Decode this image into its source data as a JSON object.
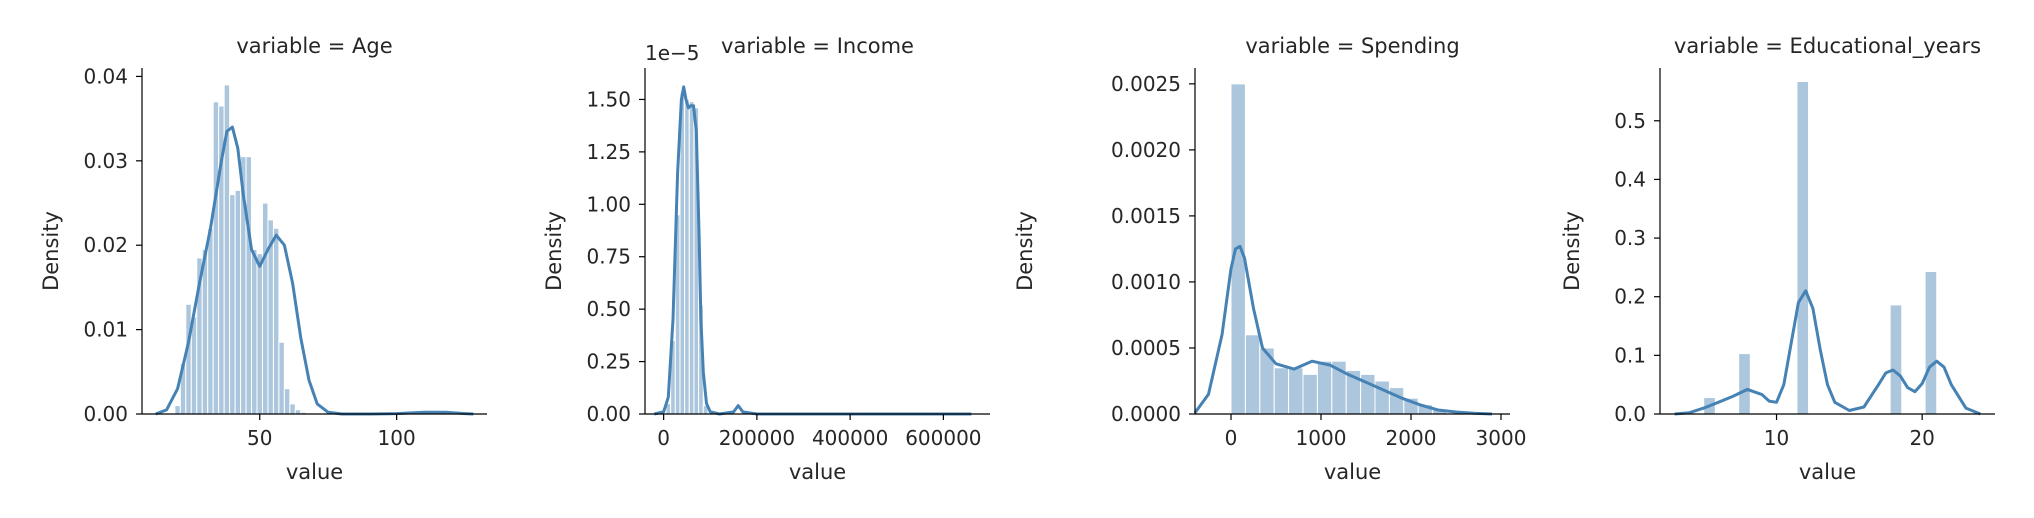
{
  "figure": {
    "background": "#ffffff"
  },
  "style": {
    "hist_color": "#4682b4",
    "hist_opacity": 0.45,
    "kde_color": "#4682b4",
    "text_color": "#262626"
  },
  "chart_data": [
    {
      "type": "histogram+kde",
      "title": "variable = Age",
      "xlabel": "value",
      "ylabel": "Density",
      "xlim": [
        7,
        133
      ],
      "ylim": [
        0,
        0.041
      ],
      "xticks": [
        50,
        100
      ],
      "xtick_labels": [
        "50",
        "100"
      ],
      "yticks": [
        0,
        0.01,
        0.02,
        0.03,
        0.04
      ],
      "ytick_labels": [
        "0.00",
        "0.01",
        "0.02",
        "0.03",
        "0.04"
      ],
      "bins": {
        "edges": [
          19,
          21,
          23,
          25,
          27,
          29,
          31,
          33,
          35,
          37,
          39,
          41,
          43,
          45,
          47,
          49,
          51,
          53,
          55,
          57,
          59,
          61,
          63,
          65,
          67,
          69,
          71,
          73
        ],
        "heights": [
          0.001,
          0.006,
          0.013,
          0.0115,
          0.0185,
          0.0195,
          0.022,
          0.037,
          0.0365,
          0.039,
          0.026,
          0.0265,
          0.0305,
          0.0305,
          0.0195,
          0.019,
          0.025,
          0.023,
          0.022,
          0.0085,
          0.003,
          0.0012,
          0.0005,
          0.0002,
          0.0001,
          0.0001,
          5e-05
        ]
      },
      "kde": {
        "x": [
          12,
          16,
          20,
          24,
          28,
          32,
          36,
          38,
          40,
          42,
          44,
          47,
          50,
          53,
          56,
          59,
          62,
          65,
          68,
          71,
          75,
          80,
          90,
          100,
          110,
          118,
          125,
          128
        ],
        "y": [
          0,
          0.0005,
          0.003,
          0.0085,
          0.0155,
          0.022,
          0.03,
          0.0335,
          0.034,
          0.0315,
          0.026,
          0.0195,
          0.0175,
          0.0195,
          0.0212,
          0.02,
          0.0155,
          0.009,
          0.004,
          0.0012,
          0.0002,
          0,
          0,
          5e-05,
          0.0002,
          0.0002,
          5e-05,
          0
        ]
      }
    },
    {
      "type": "histogram+kde",
      "title": "variable = Income",
      "xlabel": "value",
      "ylabel": "Density",
      "offset_text": "1e−5",
      "xlim": [
        -40000,
        700000
      ],
      "ylim": [
        0,
        1.65
      ],
      "xticks": [
        0,
        200000,
        400000,
        600000
      ],
      "xtick_labels": [
        "0",
        "200000",
        "400000",
        "600000"
      ],
      "yticks": [
        0,
        0.25,
        0.5,
        0.75,
        1.0,
        1.25,
        1.5
      ],
      "ytick_labels": [
        "0.00",
        "0.25",
        "0.50",
        "0.75",
        "1.00",
        "1.25",
        "1.50"
      ],
      "bins": {
        "edges": [
          5000,
          15000,
          25000,
          35000,
          45000,
          55000,
          65000,
          75000,
          85000,
          95000
        ],
        "heights": [
          0.05,
          0.35,
          0.95,
          1.53,
          1.5,
          1.49,
          1.46,
          0.52,
          0.04
        ]
      },
      "kde": {
        "x": [
          -20000,
          0,
          10000,
          20000,
          30000,
          38000,
          43000,
          48000,
          53000,
          58000,
          64000,
          70000,
          76000,
          80000,
          85000,
          92000,
          100000,
          120000,
          150000,
          160000,
          170000,
          200000,
          300000,
          500000,
          660000
        ],
        "y": [
          0,
          0.01,
          0.08,
          0.45,
          1.15,
          1.5,
          1.56,
          1.5,
          1.46,
          1.47,
          1.47,
          1.35,
          0.85,
          0.45,
          0.2,
          0.05,
          0.01,
          0,
          0.01,
          0.04,
          0.01,
          0,
          0,
          0,
          0
        ]
      }
    },
    {
      "type": "histogram+kde",
      "title": "variable = Spending",
      "xlabel": "value",
      "ylabel": "Density",
      "xlim": [
        -400,
        3100
      ],
      "ylim": [
        0,
        0.00262
      ],
      "xticks": [
        0,
        1000,
        2000,
        3000
      ],
      "xtick_labels": [
        "0",
        "1000",
        "2000",
        "3000"
      ],
      "yticks": [
        0,
        0.0005,
        0.001,
        0.0015,
        0.002,
        0.0025
      ],
      "ytick_labels": [
        "0.0000",
        "0.0005",
        "0.0010",
        "0.0015",
        "0.0020",
        "0.0025"
      ],
      "bins": {
        "edges": [
          0,
          160,
          320,
          480,
          640,
          800,
          960,
          1120,
          1280,
          1440,
          1600,
          1760,
          1920,
          2080,
          2240,
          2400
        ],
        "heights": [
          0.0025,
          0.0006,
          0.0005,
          0.00035,
          0.00035,
          0.0003,
          0.0004,
          0.0004,
          0.00033,
          0.0003,
          0.00025,
          0.0002,
          0.00012,
          7e-05,
          3e-05
        ]
      },
      "kde": {
        "x": [
          -400,
          -250,
          -100,
          0,
          50,
          100,
          150,
          250,
          350,
          500,
          700,
          900,
          1100,
          1300,
          1500,
          1700,
          1900,
          2100,
          2300,
          2500,
          2700,
          2900
        ],
        "y": [
          1e-05,
          0.00015,
          0.0006,
          0.0011,
          0.00125,
          0.00127,
          0.00118,
          0.0008,
          0.0005,
          0.00038,
          0.00034,
          0.0004,
          0.00037,
          0.0003,
          0.00024,
          0.00018,
          0.00012,
          7e-05,
          3e-05,
          1.5e-05,
          5e-06,
          0
        ]
      }
    },
    {
      "type": "histogram+kde",
      "title": "variable = Educational_years",
      "xlabel": "value",
      "ylabel": "Density",
      "xlim": [
        2,
        25
      ],
      "ylim": [
        0,
        0.59
      ],
      "xticks": [
        10,
        20
      ],
      "xtick_labels": [
        "10",
        "20"
      ],
      "yticks": [
        0,
        0.1,
        0.2,
        0.3,
        0.4,
        0.5
      ],
      "ytick_labels": [
        "0.0",
        "0.1",
        "0.2",
        "0.3",
        "0.4",
        "0.5"
      ],
      "bins": {
        "edges": [
          5,
          5.8,
          6.6,
          7.4,
          8.2,
          9,
          9.8,
          10.6,
          11.4,
          12.2,
          13,
          13.8,
          14.6,
          15.4,
          16.2,
          17,
          17.8,
          18.6,
          19.4,
          20.2,
          21,
          21.8
        ],
        "heights": [
          0.028,
          0,
          0,
          0.103,
          0,
          0,
          0,
          0,
          0.567,
          0,
          0,
          0,
          0,
          0,
          0,
          0,
          0.186,
          0,
          0,
          0.243,
          0
        ]
      },
      "kde": {
        "x": [
          3,
          4,
          5,
          6,
          7,
          8,
          9,
          9.5,
          10,
          10.5,
          11,
          11.5,
          12,
          12.5,
          13,
          13.5,
          14,
          15,
          16,
          17,
          17.5,
          18,
          18.5,
          19,
          19.5,
          20,
          20.5,
          21,
          21.5,
          22,
          23,
          24
        ],
        "y": [
          0,
          0.002,
          0.01,
          0.02,
          0.03,
          0.042,
          0.033,
          0.022,
          0.02,
          0.05,
          0.12,
          0.19,
          0.21,
          0.18,
          0.11,
          0.05,
          0.02,
          0.006,
          0.012,
          0.05,
          0.07,
          0.075,
          0.065,
          0.045,
          0.038,
          0.052,
          0.08,
          0.09,
          0.08,
          0.05,
          0.01,
          0
        ]
      }
    }
  ]
}
